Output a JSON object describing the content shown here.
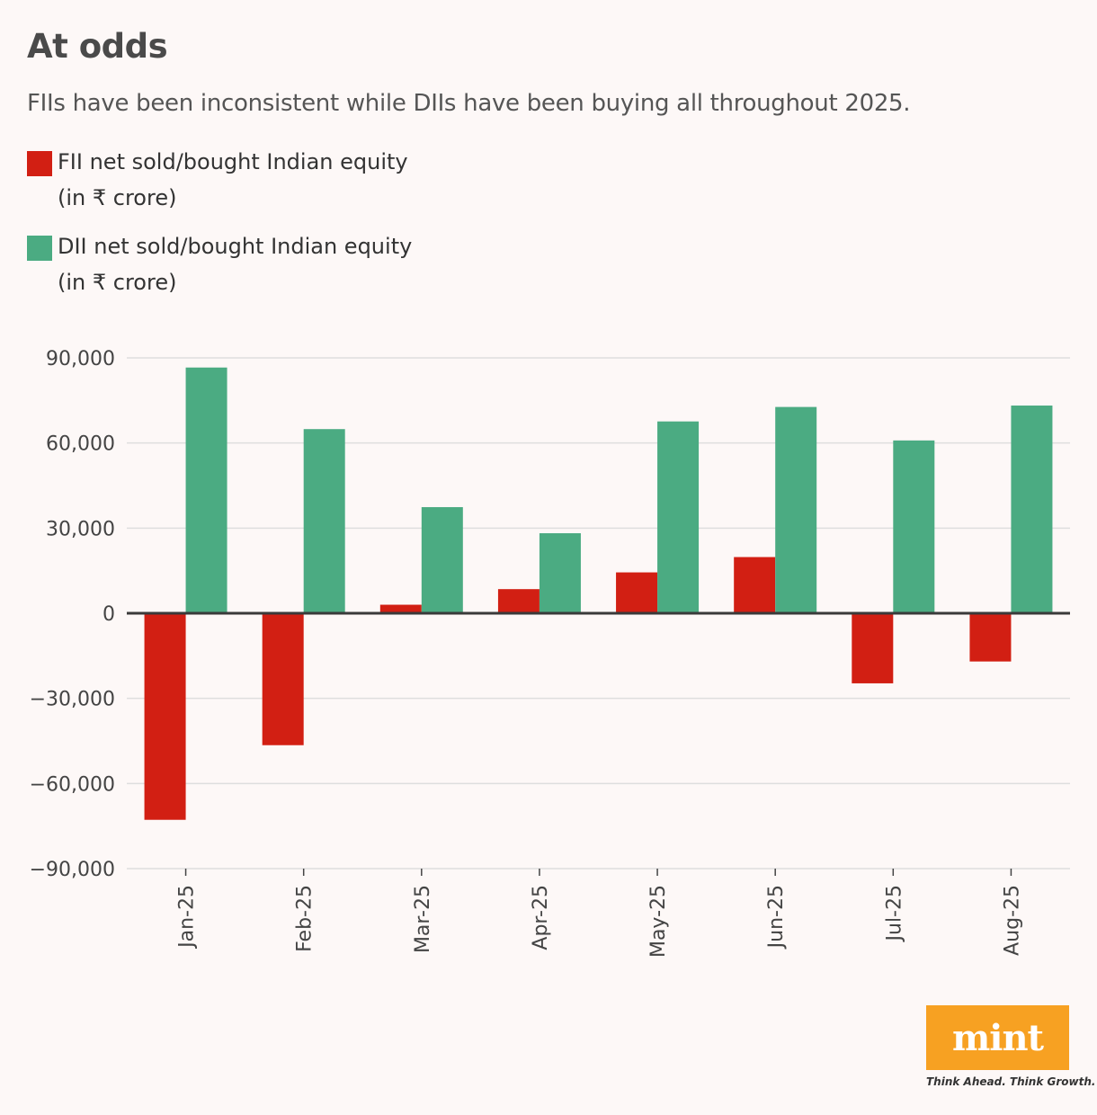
{
  "header": {
    "title": "At odds",
    "subtitle": "FIIs have been inconsistent while DIIs have been buying all throughout 2025."
  },
  "legend": [
    {
      "label": "FII net sold/bought Indian equity\n(in ₹ crore)",
      "color": "#d21f13"
    },
    {
      "label": "DII net sold/bought Indian equity\n(in ₹ crore)",
      "color": "#4bab82"
    }
  ],
  "chart_data": {
    "type": "bar",
    "categories": [
      "Jan-25",
      "Feb-25",
      "Mar-25",
      "Apr-25",
      "May-25",
      "Jun-25",
      "Jul-25",
      "Aug-25"
    ],
    "series": [
      {
        "name": "FII net sold/bought Indian equity (in ₹ crore)",
        "color": "#d21f13",
        "values": [
          -72800,
          -46500,
          3000,
          8500,
          14400,
          19800,
          -24700,
          -17000
        ]
      },
      {
        "name": "DII net sold/bought Indian equity (in ₹ crore)",
        "color": "#4bab82",
        "values": [
          86600,
          64900,
          37400,
          28200,
          67600,
          72700,
          60900,
          73200
        ]
      }
    ],
    "ylim": [
      -90000,
      90000
    ],
    "yticks": [
      90000,
      60000,
      30000,
      0,
      -30000,
      -60000,
      -90000
    ],
    "ytick_labels": [
      "90,000",
      "60,000",
      "30,000",
      "0",
      "−30,000",
      "−60,000",
      "−90,000"
    ],
    "grid": true
  },
  "branding": {
    "logo": "mint",
    "tagline": "Think Ahead. Think Growth."
  }
}
